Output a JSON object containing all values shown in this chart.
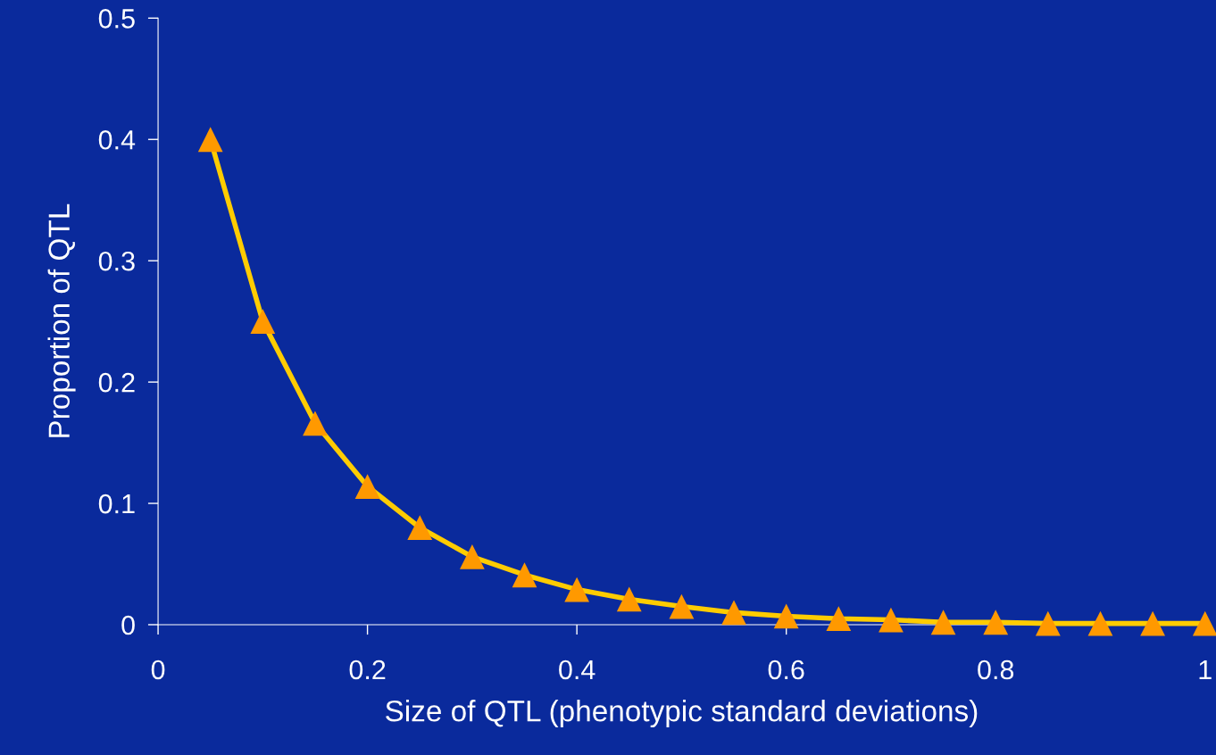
{
  "chart_data": {
    "type": "line",
    "xlabel": "Size of QTL (phenotypic standard deviations)",
    "ylabel": "Proportion of QTL",
    "x": [
      0.05,
      0.1,
      0.15,
      0.2,
      0.25,
      0.3,
      0.35,
      0.4,
      0.45,
      0.5,
      0.55,
      0.6,
      0.65,
      0.7,
      0.75,
      0.8,
      0.85,
      0.9,
      0.95,
      1.0
    ],
    "series": [
      {
        "color": "#ffcc00",
        "colors": [
          "#ff9900",
          "#ff9900",
          "#ff9900",
          "#ff9900",
          "#ff9900",
          "#ff9900",
          "#ff9900",
          "#ff9900",
          "#ff9900",
          "#ff9900",
          "#ff9900",
          "#ff9900",
          "#ff9900",
          "#ff9900",
          "#ff9900",
          "#ff9900",
          "#ff9900",
          "#ff9900",
          "#ff9900",
          "#ff9900"
        ],
        "values": [
          0.4,
          0.25,
          0.166,
          0.114,
          0.08,
          0.056,
          0.041,
          0.029,
          0.021,
          0.015,
          0.01,
          0.007,
          0.005,
          0.004,
          0.002,
          0.002,
          0.001,
          0.001,
          0.001,
          0.001
        ]
      }
    ],
    "xlim": [
      0,
      1
    ],
    "xticks": [
      0,
      0.2,
      0.4,
      0.6,
      0.8,
      1
    ],
    "ylim": [
      0,
      0.5
    ],
    "yticks": [
      0,
      0.1,
      0.2,
      0.3,
      0.4,
      0.5
    ],
    "marker": "triangle",
    "line_style": "solid",
    "grid": false,
    "legend": false
  }
}
